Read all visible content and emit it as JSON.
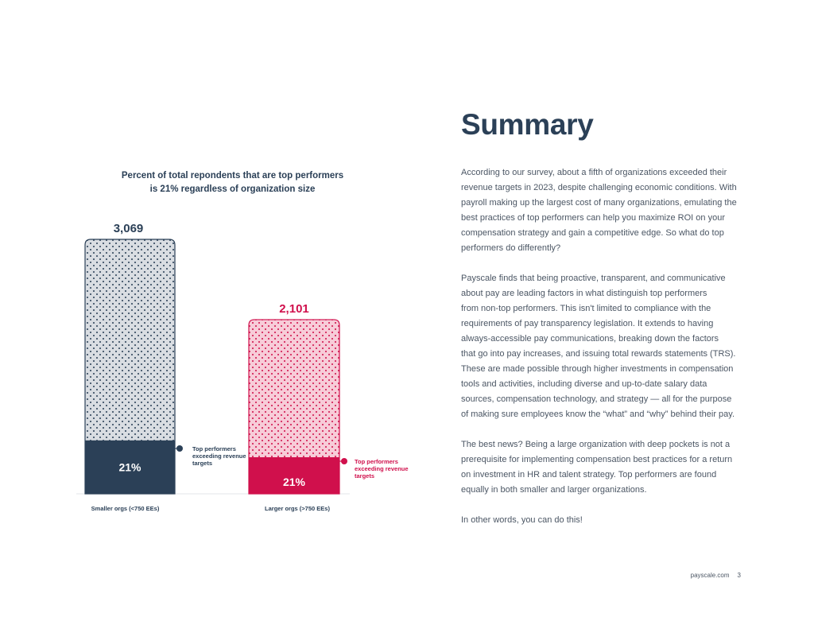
{
  "chart_data": {
    "type": "bar",
    "title_lines": [
      "Percent of total repondents that are top performers",
      "is 21% regardless of organization size"
    ],
    "categories": [
      "Smaller orgs (<750 EEs)",
      "Larger orgs (>750 EEs)"
    ],
    "series": [
      {
        "name": "Total respondents",
        "values": [
          3069,
          2101
        ],
        "value_labels": [
          "3,069",
          "2,101"
        ]
      },
      {
        "name": "Top performers exceeding revenue targets",
        "percent": [
          21,
          21
        ],
        "percent_labels": [
          "21%",
          "21%"
        ]
      }
    ],
    "annotations": [
      {
        "lines": [
          "Top performers",
          "exceeding revenue",
          "targets"
        ]
      },
      {
        "lines": [
          "Top performers",
          "exceeding revenue",
          "targets"
        ]
      }
    ],
    "ylim": [
      0,
      3069
    ],
    "colors": {
      "small_solid": "#2b4057",
      "small_dotted_bg": "#d9dde2",
      "large_solid": "#d0104c",
      "large_dotted_bg": "#f7ccd8"
    }
  },
  "summary": {
    "heading": "Summary",
    "paragraphs": [
      [
        "According to our survey, about a fifth of organizations exceeded their",
        "revenue targets in 2023, despite challenging economic conditions. With",
        "payroll making up the largest cost of many organizations, emulating the",
        "best practices of top performers can help you maximize ROI on your",
        "compensation strategy and gain a competitive edge. So what do top",
        "performers do differently?"
      ],
      [
        "Payscale finds that being proactive, transparent, and communicative",
        "about pay are leading factors in what distinguish top performers",
        "from non-top performers. This isn't limited to compliance with the",
        "requirements of pay transparency legislation. It extends to having",
        "always-accessible pay communications, breaking down the factors",
        "that go into pay increases, and issuing total rewards statements (TRS).",
        "These are made possible through higher investments in compensation",
        "tools and activities, including diverse and up-to-date salary data",
        "sources, compensation technology, and strategy — all for the purpose",
        "of making sure employees know the “what” and “why” behind their pay."
      ],
      [
        "The best news? Being a large organization with deep pockets is not a",
        "prerequisite for implementing compensation best practices for a return",
        "on investment in HR and talent strategy. Top performers are found",
        "equally in both smaller and larger organizations."
      ],
      [
        "In other words, you can do this!"
      ]
    ]
  },
  "footer": {
    "site": "payscale.com",
    "page_number": "3"
  }
}
